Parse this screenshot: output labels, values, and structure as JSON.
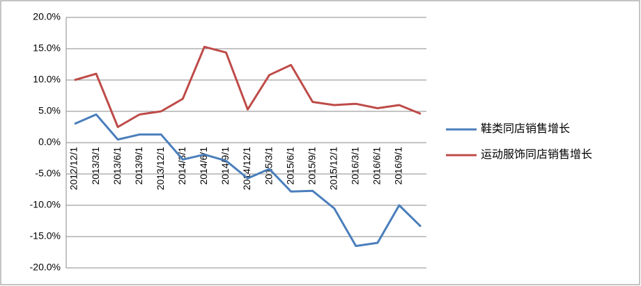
{
  "chart_data": {
    "type": "line",
    "categories": [
      "2012/12/1",
      "2013/3/1",
      "2013/6/1",
      "2013/9/1",
      "2013/12/1",
      "2014/3/1",
      "2014/6/1",
      "2014/9/1",
      "2014/12/1",
      "2015/3/1",
      "2015/6/1",
      "2015/9/1",
      "2015/12/1",
      "2016/3/1",
      "2016/6/1",
      "2016/9/1",
      null
    ],
    "series": [
      {
        "name": "鞋类同店销售增长",
        "color": "#4a7ebb",
        "values": [
          3.0,
          4.5,
          0.5,
          1.3,
          1.3,
          -2.7,
          -1.9,
          -2.9,
          -5.7,
          -4.2,
          -7.8,
          -7.7,
          -10.5,
          -16.5,
          -16.0,
          -10.0,
          -13.4
        ]
      },
      {
        "name": "运动服饰同店销售增长",
        "color": "#be4b48",
        "values": [
          10.0,
          11.0,
          2.5,
          4.5,
          5.0,
          7.0,
          15.3,
          14.4,
          5.3,
          10.8,
          12.4,
          6.5,
          6.0,
          6.2,
          5.5,
          6.0,
          4.6
        ]
      }
    ],
    "ylim": [
      -20,
      20
    ],
    "yticks": [
      {
        "value": -20,
        "label": "-20.0%"
      },
      {
        "value": -15,
        "label": "-15.0%"
      },
      {
        "value": -10,
        "label": "-10.0%"
      },
      {
        "value": -5,
        "label": "-5.0%"
      },
      {
        "value": 0,
        "label": "0.0%"
      },
      {
        "value": 5,
        "label": "5.0%"
      },
      {
        "value": 10,
        "label": "10.0%"
      },
      {
        "value": 15,
        "label": "15.0%"
      },
      {
        "value": 20,
        "label": "20.0%"
      }
    ],
    "grid": true,
    "legend": "right"
  }
}
